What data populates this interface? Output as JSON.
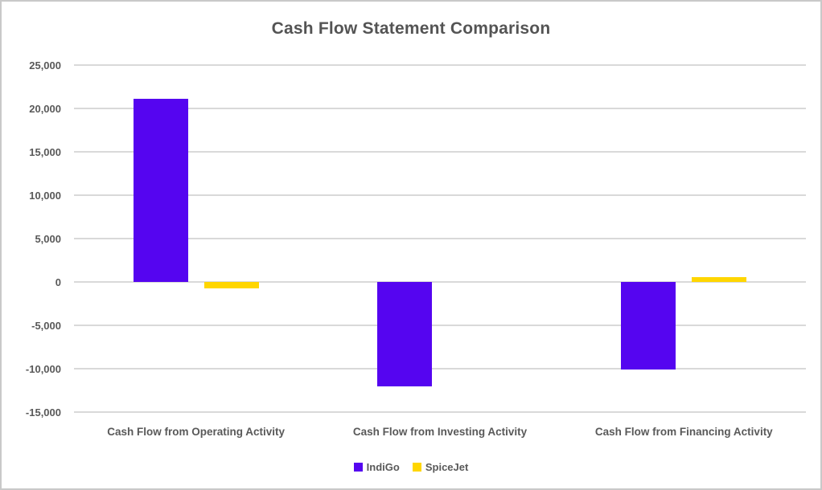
{
  "chart_data": {
    "type": "bar",
    "title": "Cash Flow Statement Comparison",
    "categories": [
      "Cash Flow from Operating Activity",
      "Cash Flow from Investing Activity",
      "Cash Flow from Financing Activity"
    ],
    "series": [
      {
        "name": "IndiGo",
        "color": "#5505f0",
        "values": [
          21150,
          -12000,
          -10100
        ]
      },
      {
        "name": "SpiceJet",
        "color": "#ffd600",
        "values": [
          -750,
          0,
          600
        ]
      }
    ],
    "ylim": [
      -15000,
      25000
    ],
    "ytick_step": 5000,
    "ytick_labels": [
      "25,000",
      "20,000",
      "15,000",
      "10,000",
      "5,000",
      "0",
      "-5,000",
      "-10,000",
      "-15,000"
    ],
    "ytick_values": [
      25000,
      20000,
      15000,
      10000,
      5000,
      0,
      -5000,
      -10000,
      -15000
    ],
    "xlabel": "",
    "ylabel": "",
    "grid": true,
    "legend_position": "bottom"
  },
  "colors": {
    "grid": "#d9d9d9",
    "text": "#595959",
    "title_text": "#545454",
    "frame_border": "#c9c9c9",
    "background": "#ffffff"
  }
}
